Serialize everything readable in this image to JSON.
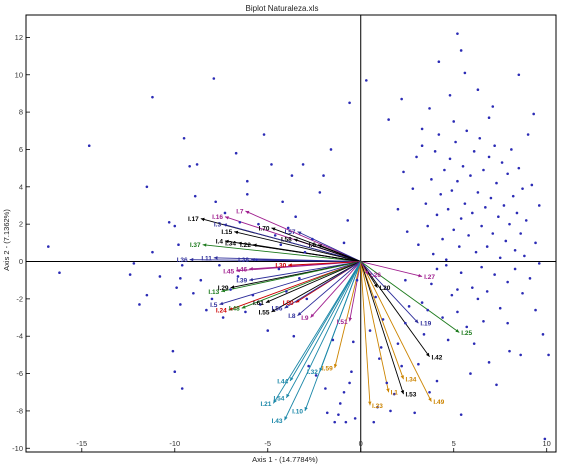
{
  "chart_data": {
    "type": "scatter",
    "title": "Biplot Naturaleza.xls",
    "xlabel": "Axis 1 - (14.7784%)",
    "ylabel": "Axis 2 - (7.1362%)",
    "xlim": [
      -18,
      10.5
    ],
    "ylim": [
      -10.2,
      13.2
    ],
    "xticks": [
      -15,
      -10,
      -5,
      0,
      5,
      10
    ],
    "yticks": [
      -10,
      -8,
      -6,
      -4,
      -2,
      0,
      2,
      4,
      6,
      8,
      10,
      12
    ],
    "xtick_labels": [
      "-15",
      "-10",
      "-5",
      "0",
      "5",
      "10"
    ],
    "ytick_labels": [
      "-10",
      "-8",
      "-6",
      "-4",
      "-2",
      "0",
      "2",
      "4",
      "6",
      "8",
      "10",
      "12"
    ],
    "grid": false,
    "point_color": "#2b2bb5",
    "vectors": [
      {
        "label": "I.17",
        "x": -8.6,
        "y": 2.3,
        "color": "#000000"
      },
      {
        "label": "I.16",
        "x": -7.3,
        "y": 2.4,
        "color": "#a0208f"
      },
      {
        "label": "I.7",
        "x": -6.2,
        "y": 2.7,
        "color": "#a0208f"
      },
      {
        "label": "I.3",
        "x": -7.4,
        "y": 2.0,
        "color": "#2d2d9a"
      },
      {
        "label": "I.15",
        "x": -6.8,
        "y": 1.6,
        "color": "#000000"
      },
      {
        "label": "I.37",
        "x": -8.5,
        "y": 0.9,
        "color": "#1c7a1c"
      },
      {
        "label": "I.4",
        "x": -7.3,
        "y": 1.1,
        "color": "#000000"
      },
      {
        "label": "I.34",
        "x": -6.6,
        "y": 1.0,
        "color": "#000000"
      },
      {
        "label": "I.22",
        "x": -5.8,
        "y": 0.9,
        "color": "#000000"
      },
      {
        "label": "I.70",
        "x": -4.8,
        "y": 1.8,
        "color": "#000000"
      },
      {
        "label": "I.57",
        "x": -3.4,
        "y": 1.6,
        "color": "#2d2d9a"
      },
      {
        "label": "I.58",
        "x": -3.6,
        "y": 1.2,
        "color": "#000000"
      },
      {
        "label": "I.6",
        "x": -2.3,
        "y": 0.9,
        "color": "#000000"
      },
      {
        "label": "I.36",
        "x": -9.2,
        "y": 0.1,
        "color": "#2d2d9a"
      },
      {
        "label": "I.11",
        "x": -7.9,
        "y": 0.2,
        "color": "#2d2d9a"
      },
      {
        "label": "I.38",
        "x": -5.9,
        "y": 0.1,
        "color": "#2d2d9a"
      },
      {
        "label": "I.45",
        "x": -6.7,
        "y": -0.5,
        "color": "#a0208f"
      },
      {
        "label": "I.46",
        "x": -6.0,
        "y": -0.4,
        "color": "#a0208f"
      },
      {
        "label": "I.30",
        "x": -3.9,
        "y": -0.2,
        "color": "#cc0000"
      },
      {
        "label": "I.39",
        "x": -6.0,
        "y": -1.0,
        "color": "#2d2d9a"
      },
      {
        "label": "I.29",
        "x": -7.0,
        "y": -1.4,
        "color": "#000000"
      },
      {
        "label": "I.13",
        "x": -7.5,
        "y": -1.6,
        "color": "#1c7a1c"
      },
      {
        "label": "I.5",
        "x": -7.6,
        "y": -2.3,
        "color": "#2d2d9a"
      },
      {
        "label": "I.24",
        "x": -7.1,
        "y": -2.6,
        "color": "#cc0000"
      },
      {
        "label": "I.48",
        "x": -6.4,
        "y": -2.5,
        "color": "#1c7a1c"
      },
      {
        "label": "I.61",
        "x": -5.1,
        "y": -2.2,
        "color": "#000000"
      },
      {
        "label": "I.55",
        "x": -4.8,
        "y": -2.7,
        "color": "#000000"
      },
      {
        "label": "I.50",
        "x": -3.5,
        "y": -2.2,
        "color": "#cc0000"
      },
      {
        "label": "I.56",
        "x": -4.1,
        "y": -2.5,
        "color": "#2d2d9a"
      },
      {
        "label": "I.8",
        "x": -3.4,
        "y": -2.9,
        "color": "#2d2d9a"
      },
      {
        "label": "I.9",
        "x": -2.7,
        "y": -3.0,
        "color": "#a0208f"
      },
      {
        "label": "I.51",
        "x": -0.6,
        "y": -3.2,
        "color": "#a0208f"
      },
      {
        "label": "I.59",
        "x": -1.4,
        "y": -5.7,
        "color": "#cc8400"
      },
      {
        "label": "I.32",
        "x": -2.2,
        "y": -5.9,
        "color": "#1a87a8"
      },
      {
        "label": "I.44",
        "x": -3.8,
        "y": -6.4,
        "color": "#1a87a8"
      },
      {
        "label": "I.54",
        "x": -4.0,
        "y": -7.3,
        "color": "#1a87a8"
      },
      {
        "label": "I.21",
        "x": -4.7,
        "y": -7.6,
        "color": "#1a87a8"
      },
      {
        "label": "I.10",
        "x": -3.0,
        "y": -8.0,
        "color": "#1a87a8"
      },
      {
        "label": "I.43",
        "x": -4.1,
        "y": -8.5,
        "color": "#1a87a8"
      },
      {
        "label": "I.23",
        "x": 0.5,
        "y": -7.7,
        "color": "#cc8400"
      },
      {
        "label": "I.1",
        "x": 1.5,
        "y": -7.0,
        "color": "#cc8400"
      },
      {
        "label": "I.34",
        "x": 2.3,
        "y": -6.3,
        "color": "#cc8400"
      },
      {
        "label": "I.53",
        "x": 2.3,
        "y": -7.1,
        "color": "#000000"
      },
      {
        "label": "I.49",
        "x": 3.8,
        "y": -7.5,
        "color": "#cc8400"
      },
      {
        "label": "I.42",
        "x": 3.7,
        "y": -5.1,
        "color": "#000000"
      },
      {
        "label": "I.19",
        "x": 3.1,
        "y": -3.3,
        "color": "#2d2d9a"
      },
      {
        "label": "I.20",
        "x": 0.9,
        "y": -1.4,
        "color": "#000000"
      },
      {
        "label": "I.26",
        "x": 0.4,
        "y": -0.7,
        "color": "#a0208f"
      },
      {
        "label": "I.27",
        "x": 3.3,
        "y": -0.8,
        "color": "#a0208f"
      },
      {
        "label": "I.25",
        "x": 5.3,
        "y": -3.8,
        "color": "#1c7a1c"
      }
    ],
    "points": [
      [
        -16.8,
        0.8
      ],
      [
        -16.2,
        -0.6
      ],
      [
        -14.6,
        6.2
      ],
      [
        -12.4,
        -0.7
      ],
      [
        -11.9,
        -2.3
      ],
      [
        -11.2,
        8.8
      ],
      [
        -11.5,
        4.0
      ],
      [
        -11.2,
        0.5
      ],
      [
        -11.5,
        -1.8
      ],
      [
        -12.2,
        -0.1
      ],
      [
        -10.8,
        -0.8
      ],
      [
        -10.3,
        2.1
      ],
      [
        -10.0,
        1.9
      ],
      [
        -9.8,
        0.9
      ],
      [
        -9.6,
        -0.2
      ],
      [
        -9.7,
        -0.9
      ],
      [
        -9.9,
        -1.4
      ],
      [
        -9.7,
        -2.3
      ],
      [
        -9.0,
        -1.7
      ],
      [
        -8.9,
        3.5
      ],
      [
        -8.6,
        -1.0
      ],
      [
        -8.3,
        -2.6
      ],
      [
        -8.8,
        5.2
      ],
      [
        -9.2,
        5.1
      ],
      [
        -9.5,
        6.6
      ],
      [
        -10.1,
        -4.8
      ],
      [
        -10.0,
        -5.9
      ],
      [
        -9.6,
        -6.8
      ],
      [
        -8.0,
        -2.0
      ],
      [
        -7.9,
        9.8
      ],
      [
        -7.8,
        3.2
      ],
      [
        -7.6,
        -0.2
      ],
      [
        -7.4,
        -3.0
      ],
      [
        -7.3,
        2.6
      ],
      [
        -7.0,
        -1.5
      ],
      [
        -6.7,
        5.8
      ],
      [
        -6.5,
        2.1
      ],
      [
        -6.6,
        -0.8
      ],
      [
        -6.2,
        -2.7
      ],
      [
        -6.1,
        4.3
      ],
      [
        -6.1,
        3.6
      ],
      [
        -5.8,
        -1.8
      ],
      [
        -5.6,
        0.1
      ],
      [
        -5.5,
        2.0
      ],
      [
        -5.4,
        -2.3
      ],
      [
        -5.2,
        6.8
      ],
      [
        -5.0,
        -3.7
      ],
      [
        -4.8,
        5.2
      ],
      [
        -4.6,
        1.4
      ],
      [
        -4.4,
        -0.4
      ],
      [
        -4.3,
        0.9
      ],
      [
        -4.2,
        3.2
      ],
      [
        -4.0,
        -1.6
      ],
      [
        -3.9,
        1.8
      ],
      [
        -3.7,
        4.6
      ],
      [
        -3.6,
        -4.0
      ],
      [
        -3.5,
        2.4
      ],
      [
        -3.3,
        -0.9
      ],
      [
        -3.1,
        5.2
      ],
      [
        -3.0,
        0.5
      ],
      [
        -2.9,
        -2.0
      ],
      [
        -2.8,
        -5.6
      ],
      [
        -2.6,
        1.2
      ],
      [
        -2.4,
        -6.1
      ],
      [
        -2.2,
        3.7
      ],
      [
        -2.0,
        4.6
      ],
      [
        -1.9,
        -6.8
      ],
      [
        -1.8,
        -8.1
      ],
      [
        -1.6,
        6.0
      ],
      [
        -1.5,
        -4.2
      ],
      [
        -1.4,
        -8.6
      ],
      [
        -1.2,
        -8.2
      ],
      [
        -1.1,
        -7.6
      ],
      [
        -0.9,
        -7.0
      ],
      [
        -0.8,
        -8.6
      ],
      [
        -0.6,
        -6.5
      ],
      [
        -0.5,
        -5.9
      ],
      [
        -0.4,
        -4.3
      ],
      [
        -0.3,
        -8.4
      ],
      [
        -0.6,
        8.5
      ],
      [
        -0.7,
        2.2
      ],
      [
        -0.9,
        1.0
      ],
      [
        -0.2,
        -1.0
      ],
      [
        0.5,
        -3.7
      ],
      [
        0.7,
        -8.6
      ],
      [
        0.9,
        -7.8
      ],
      [
        1.0,
        -5.2
      ],
      [
        1.2,
        -3.1
      ],
      [
        1.4,
        -6.5
      ],
      [
        1.6,
        -8.0
      ],
      [
        1.8,
        -7.1
      ],
      [
        2.0,
        -4.4
      ],
      [
        2.2,
        -5.6
      ],
      [
        2.4,
        -3.3
      ],
      [
        2.6,
        -2.4
      ],
      [
        2.9,
        -8.1
      ],
      [
        3.1,
        -5.5
      ],
      [
        3.4,
        -3.9
      ],
      [
        3.6,
        -2.6
      ],
      [
        3.8,
        -1.2
      ],
      [
        4.1,
        -6.4
      ],
      [
        4.4,
        -3.0
      ],
      [
        4.7,
        -4.2
      ],
      [
        4.9,
        -1.8
      ],
      [
        5.2,
        -2.7
      ],
      [
        5.4,
        -0.6
      ],
      [
        5.7,
        -3.5
      ],
      [
        6.0,
        -1.4
      ],
      [
        6.3,
        -2.0
      ],
      [
        6.5,
        -0.3
      ],
      [
        6.8,
        -1.6
      ],
      [
        7.2,
        -0.7
      ],
      [
        7.5,
        -2.5
      ],
      [
        7.9,
        -1.1
      ],
      [
        8.3,
        -0.4
      ],
      [
        8.7,
        -1.7
      ],
      [
        9.1,
        -0.9
      ],
      [
        9.6,
        -0.1
      ],
      [
        9.8,
        -3.9
      ],
      [
        10.1,
        -5.0
      ],
      [
        9.9,
        -9.5
      ],
      [
        5.4,
        -8.2
      ],
      [
        7.3,
        -6.6
      ],
      [
        8.6,
        -5.0
      ],
      [
        2.0,
        2.8
      ],
      [
        2.3,
        4.8
      ],
      [
        2.5,
        1.6
      ],
      [
        2.8,
        3.9
      ],
      [
        3.0,
        5.6
      ],
      [
        3.1,
        0.9
      ],
      [
        3.3,
        6.2
      ],
      [
        3.5,
        3.1
      ],
      [
        3.6,
        1.9
      ],
      [
        3.8,
        4.4
      ],
      [
        3.9,
        0.4
      ],
      [
        4.0,
        5.9
      ],
      [
        4.1,
        2.5
      ],
      [
        4.2,
        6.8
      ],
      [
        4.3,
        3.6
      ],
      [
        4.4,
        1.2
      ],
      [
        4.5,
        4.9
      ],
      [
        4.6,
        0.1
      ],
      [
        4.7,
        2.8
      ],
      [
        4.8,
        5.5
      ],
      [
        4.9,
        3.8
      ],
      [
        5.0,
        1.7
      ],
      [
        5.1,
        6.4
      ],
      [
        5.2,
        4.3
      ],
      [
        5.3,
        0.8
      ],
      [
        5.4,
        2.3
      ],
      [
        5.5,
        5.1
      ],
      [
        5.6,
        3.1
      ],
      [
        5.7,
        7.0
      ],
      [
        5.8,
        1.4
      ],
      [
        5.9,
        4.6
      ],
      [
        6.0,
        2.6
      ],
      [
        6.1,
        5.9
      ],
      [
        6.2,
        0.5
      ],
      [
        6.3,
        3.7
      ],
      [
        6.4,
        6.6
      ],
      [
        6.5,
        1.9
      ],
      [
        6.6,
        4.9
      ],
      [
        6.7,
        2.9
      ],
      [
        6.8,
        0.8
      ],
      [
        6.9,
        5.6
      ],
      [
        7.0,
        3.4
      ],
      [
        7.1,
        1.5
      ],
      [
        7.2,
        6.2
      ],
      [
        7.3,
        4.2
      ],
      [
        7.4,
        2.4
      ],
      [
        7.5,
        0.2
      ],
      [
        7.6,
        5.3
      ],
      [
        7.7,
        3.0
      ],
      [
        7.8,
        1.1
      ],
      [
        7.9,
        4.7
      ],
      [
        8.0,
        2.0
      ],
      [
        8.1,
        6.0
      ],
      [
        8.2,
        3.5
      ],
      [
        8.3,
        0.6
      ],
      [
        8.4,
        2.6
      ],
      [
        8.5,
        5.0
      ],
      [
        8.6,
        1.5
      ],
      [
        8.7,
        3.9
      ],
      [
        8.8,
        0.3
      ],
      [
        8.9,
        2.2
      ],
      [
        9.0,
        6.8
      ],
      [
        9.2,
        4.1
      ],
      [
        9.4,
        1.0
      ],
      [
        9.6,
        3.0
      ],
      [
        9.3,
        7.9
      ],
      [
        5.2,
        12.2
      ],
      [
        5.4,
        11.3
      ],
      [
        4.2,
        10.7
      ],
      [
        5.6,
        10.1
      ],
      [
        8.5,
        10.0
      ],
      [
        6.3,
        9.2
      ],
      [
        4.8,
        8.9
      ],
      [
        2.2,
        8.7
      ],
      [
        3.7,
        8.2
      ],
      [
        7.1,
        8.3
      ],
      [
        0.3,
        9.7
      ],
      [
        1.5,
        7.6
      ],
      [
        6.9,
        7.7
      ],
      [
        3.3,
        7.1
      ],
      [
        5.0,
        7.5
      ],
      [
        4.1,
        -0.4
      ],
      [
        5.2,
        -1.5
      ],
      [
        6.6,
        -3.2
      ],
      [
        3.3,
        -2.2
      ],
      [
        2.4,
        -1.0
      ],
      [
        4.6,
        -0.2
      ],
      [
        6.1,
        -4.4
      ],
      [
        7.9,
        -3.3
      ],
      [
        5.9,
        -6.0
      ],
      [
        3.7,
        -7.0
      ],
      [
        1.1,
        -4.6
      ],
      [
        0.8,
        -1.9
      ],
      [
        9.4,
        -2.6
      ],
      [
        8.0,
        -4.8
      ],
      [
        6.9,
        -5.4
      ]
    ]
  }
}
